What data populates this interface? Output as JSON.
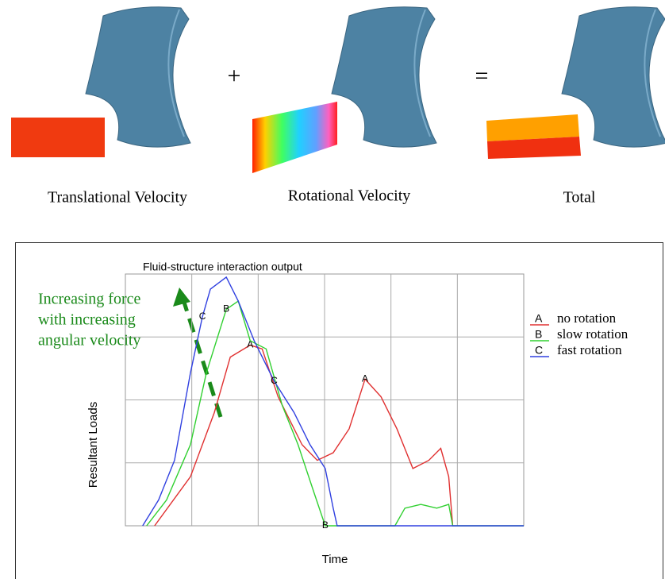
{
  "figure": {
    "panels": [
      "Translational Velocity",
      "Rotational Velocity",
      "Total"
    ],
    "operators": [
      "+",
      "="
    ]
  },
  "chart_data": {
    "type": "line",
    "title": "Fluid-structure interaction output",
    "xlabel": "Time",
    "ylabel": "Resultant Loads",
    "xlim": [
      0,
      6
    ],
    "ylim": [
      0,
      4
    ],
    "grid": true,
    "legend": "right",
    "annotation": [
      "Increasing force",
      "with increasing",
      "angular velocity"
    ],
    "annotation_color": "#1a8a1a",
    "series": [
      {
        "name": "no rotation",
        "symbol": "A",
        "color": "#e03030",
        "x": [
          0.44,
          0.98,
          1.34,
          1.58,
          1.88,
          2.06,
          2.3,
          2.66,
          2.89,
          3.13,
          3.37,
          3.61,
          3.85,
          4.09,
          4.33,
          4.57,
          4.75,
          4.87,
          4.93
        ],
        "values": [
          0,
          0.78,
          1.8,
          2.68,
          2.87,
          2.81,
          2.05,
          1.29,
          1.04,
          1.16,
          1.54,
          2.33,
          2.05,
          1.54,
          0.91,
          1.04,
          1.23,
          0.78,
          0
        ]
      },
      {
        "name": "slow rotation",
        "symbol": "B",
        "color": "#30d030",
        "x": [
          0.32,
          0.62,
          0.98,
          1.22,
          1.52,
          1.7,
          1.88,
          2.12,
          2.36,
          2.6,
          2.84,
          3.01,
          4.06,
          4.21,
          4.45,
          4.69,
          4.87,
          4.93,
          6
        ],
        "values": [
          0,
          0.41,
          1.29,
          2.43,
          3.44,
          3.57,
          2.94,
          2.81,
          1.92,
          1.29,
          0.53,
          0,
          0,
          0.28,
          0.34,
          0.28,
          0.34,
          0,
          0
        ]
      },
      {
        "name": "fast rotation",
        "symbol": "C",
        "color": "#3040e0",
        "x": [
          0.26,
          0.5,
          0.74,
          0.98,
          1.16,
          1.28,
          1.52,
          1.7,
          1.94,
          2.24,
          2.54,
          2.78,
          3.01,
          3.13,
          3.19,
          6
        ],
        "values": [
          0,
          0.41,
          1.04,
          2.43,
          3.32,
          3.76,
          3.95,
          3.57,
          2.94,
          2.3,
          1.8,
          1.29,
          0.91,
          0.28,
          0,
          0
        ]
      }
    ]
  }
}
